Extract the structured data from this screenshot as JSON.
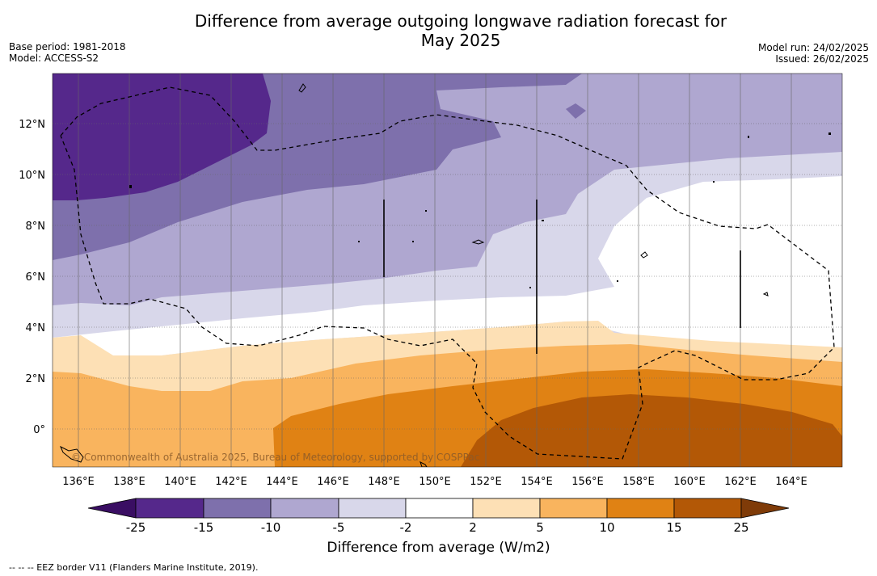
{
  "title_line1": "Difference from average outgoing longwave radiation forecast for",
  "title_line2": "May 2025",
  "base_period": "Base period: 1981-2018",
  "model": "Model: ACCESS-S2",
  "model_run": "Model run: 24/02/2025",
  "issued": "Issued: 26/02/2025",
  "copyright": "© Commonwealth of Australia 2025, Bureau of Meteorology, supported by COSPPac",
  "colorbar_title": "Difference from average (W/m2)",
  "footnote": "--  --  -- EEZ border V11 (Flanders Marine Institute, 2019).",
  "lon_labels": [
    "136°E",
    "138°E",
    "140°E",
    "142°E",
    "144°E",
    "146°E",
    "148°E",
    "150°E",
    "152°E",
    "154°E",
    "156°E",
    "158°E",
    "160°E",
    "162°E",
    "164°E"
  ],
  "lat_labels": [
    "12°N",
    "10°N",
    "8°N",
    "6°N",
    "4°N",
    "2°N",
    "0°"
  ],
  "colorbar_ticks": [
    "-25",
    "-15",
    "-10",
    "-5",
    "-2",
    "2",
    "5",
    "10",
    "15",
    "25"
  ],
  "colors": {
    "under": "#3a0e63",
    "c1": "#55288b",
    "c2": "#7e70ac",
    "c3": "#afa7d0",
    "c4": "#d8d7ea",
    "c5": "#ffffff",
    "c6": "#fde0b5",
    "c7": "#f9b45e",
    "c8": "#e08214",
    "c9": "#b35806",
    "over": "#7f3b08"
  }
}
